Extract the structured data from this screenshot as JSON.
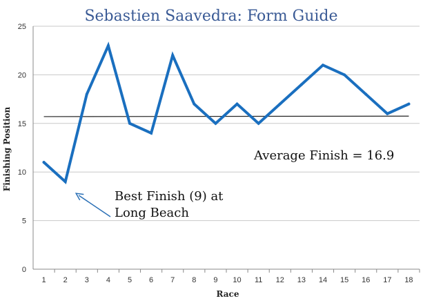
{
  "chart_data": {
    "type": "line",
    "title": "Sebastien Saavedra: Form Guide",
    "xlabel": "Race",
    "ylabel": "Finishing Position",
    "x": [
      1,
      2,
      3,
      4,
      5,
      6,
      7,
      8,
      9,
      10,
      11,
      12,
      13,
      14,
      15,
      16,
      17,
      18
    ],
    "series": [
      {
        "values": [
          11,
          9,
          18,
          23,
          15,
          14,
          22,
          17,
          15,
          17,
          15,
          17,
          19,
          21,
          20,
          18,
          16,
          17
        ]
      }
    ],
    "reference_line": {
      "from": 15.7,
      "to": 15.75
    },
    "ylim": [
      0,
      25
    ],
    "yticks": [
      0,
      5,
      10,
      15,
      20,
      25
    ],
    "xlim": [
      0.5,
      18.5
    ],
    "grid": "horizontal",
    "legend": "none",
    "annotations": [
      {
        "id": "average",
        "lines": [
          "Average Finish = 16.9"
        ]
      },
      {
        "id": "best",
        "lines": [
          "Best Finish (9) at",
          "Long Beach"
        ],
        "points_to": {
          "x": 2.5,
          "y": 7.8
        }
      }
    ],
    "colors": {
      "title": "#3a5a95",
      "series": "#1a6fbf",
      "reference": "#222222",
      "grid": "#c8c8c8",
      "axis": "#888888",
      "arrow": "#2a6fb5"
    }
  }
}
